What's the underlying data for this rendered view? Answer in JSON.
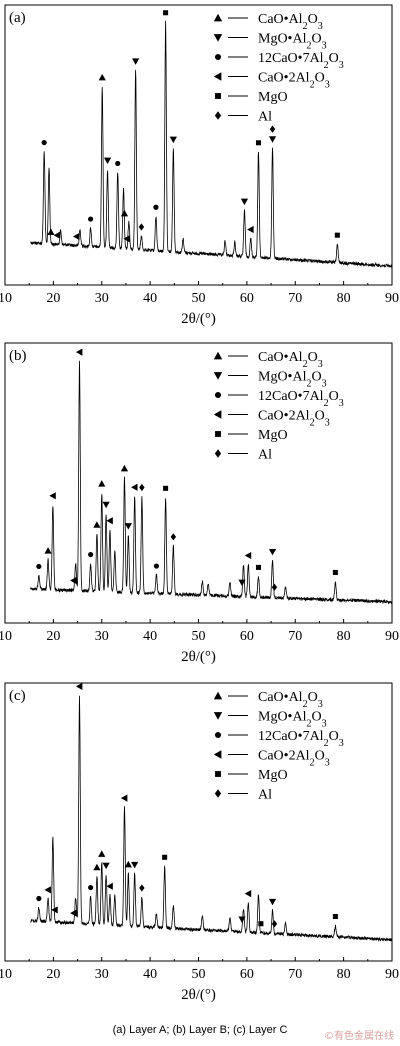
{
  "caption": "(a) Layer A; (b) Layer B; (c) Layer C",
  "watermark": "©有色金属在线",
  "legend_entries": [
    {
      "marker": "triangle-up",
      "html": "CaO•Al<tspan baseline-shift=\"sub\" font-size=\"10\">2</tspan>O<tspan baseline-shift=\"sub\" font-size=\"10\">3</tspan>"
    },
    {
      "marker": "triangle-down",
      "html": "MgO•Al<tspan baseline-shift=\"sub\" font-size=\"10\">2</tspan>O<tspan baseline-shift=\"sub\" font-size=\"10\">3</tspan>"
    },
    {
      "marker": "circle",
      "html": "12CaO•7Al<tspan baseline-shift=\"sub\" font-size=\"10\">2</tspan>O<tspan baseline-shift=\"sub\" font-size=\"10\">3</tspan>"
    },
    {
      "marker": "triangle-left",
      "html": "CaO•2Al<tspan baseline-shift=\"sub\" font-size=\"10\">2</tspan>O<tspan baseline-shift=\"sub\" font-size=\"10\">3</tspan>"
    },
    {
      "marker": "square",
      "html": "MgO"
    },
    {
      "marker": "diamond",
      "html": "Al"
    }
  ],
  "chart_data": [
    {
      "type": "line",
      "panel_label": "(a)",
      "xlabel": "2θ/(°)",
      "xlim": [
        10,
        90
      ],
      "xticks": [
        10,
        20,
        30,
        40,
        50,
        60,
        70,
        80,
        90
      ],
      "background": {
        "start": 0.14,
        "end": 0.03
      },
      "peaks": [
        {
          "x": 18.1,
          "h": 0.4
        },
        {
          "x": 19.1,
          "h": 0.33
        },
        {
          "x": 21.5,
          "h": 0.06
        },
        {
          "x": 25.5,
          "h": 0.07
        },
        {
          "x": 27.7,
          "h": 0.08
        },
        {
          "x": 30.1,
          "h": 0.7
        },
        {
          "x": 31.2,
          "h": 0.34
        },
        {
          "x": 33.3,
          "h": 0.33
        },
        {
          "x": 34.5,
          "h": 0.26
        },
        {
          "x": 35.6,
          "h": 0.12
        },
        {
          "x": 37.0,
          "h": 0.78
        },
        {
          "x": 38.2,
          "h": 0.06
        },
        {
          "x": 41.2,
          "h": 0.15
        },
        {
          "x": 43.2,
          "h": 1.0
        },
        {
          "x": 44.8,
          "h": 0.45
        },
        {
          "x": 46.8,
          "h": 0.06
        },
        {
          "x": 55.5,
          "h": 0.06
        },
        {
          "x": 57.5,
          "h": 0.06
        },
        {
          "x": 59.5,
          "h": 0.2
        },
        {
          "x": 60.8,
          "h": 0.08
        },
        {
          "x": 62.4,
          "h": 0.46
        },
        {
          "x": 65.3,
          "h": 0.48
        },
        {
          "x": 78.7,
          "h": 0.08
        }
      ],
      "markers": [
        {
          "x": 18.1,
          "type": "circle"
        },
        {
          "x": 19.5,
          "type": "triangle-up"
        },
        {
          "x": 20.8,
          "type": "triangle-left"
        },
        {
          "x": 24.8,
          "type": "triangle-left"
        },
        {
          "x": 27.7,
          "type": "circle"
        },
        {
          "x": 30.1,
          "type": "triangle-up"
        },
        {
          "x": 31.2,
          "type": "triangle-down"
        },
        {
          "x": 33.3,
          "type": "circle"
        },
        {
          "x": 34.7,
          "type": "triangle-up"
        },
        {
          "x": 35.2,
          "type": "triangle-left"
        },
        {
          "x": 37.0,
          "type": "triangle-down"
        },
        {
          "x": 38.2,
          "type": "diamond"
        },
        {
          "x": 41.2,
          "type": "circle"
        },
        {
          "x": 43.2,
          "type": "square"
        },
        {
          "x": 44.8,
          "type": "triangle-down"
        },
        {
          "x": 59.5,
          "type": "triangle-down"
        },
        {
          "x": 60.8,
          "type": "triangle-left"
        },
        {
          "x": 62.4,
          "type": "square"
        },
        {
          "x": 65.3,
          "type": "triangle-down"
        },
        {
          "x": 65.3,
          "type": "diamond"
        },
        {
          "x": 78.7,
          "type": "square"
        }
      ]
    },
    {
      "type": "line",
      "panel_label": "(b)",
      "xlabel": "2θ/(°)",
      "xlim": [
        10,
        90
      ],
      "xticks": [
        10,
        20,
        30,
        40,
        50,
        60,
        70,
        80,
        90
      ],
      "background": {
        "start": 0.1,
        "end": 0.04
      },
      "peaks": [
        {
          "x": 17.0,
          "h": 0.06
        },
        {
          "x": 18.9,
          "h": 0.13
        },
        {
          "x": 19.9,
          "h": 0.37
        },
        {
          "x": 24.6,
          "h": 0.12
        },
        {
          "x": 25.4,
          "h": 1.0
        },
        {
          "x": 27.7,
          "h": 0.12
        },
        {
          "x": 29.0,
          "h": 0.25
        },
        {
          "x": 30.0,
          "h": 0.43
        },
        {
          "x": 30.9,
          "h": 0.34
        },
        {
          "x": 31.7,
          "h": 0.27
        },
        {
          "x": 32.7,
          "h": 0.18
        },
        {
          "x": 34.7,
          "h": 0.5
        },
        {
          "x": 35.5,
          "h": 0.25
        },
        {
          "x": 36.8,
          "h": 0.42
        },
        {
          "x": 38.3,
          "h": 0.42
        },
        {
          "x": 41.3,
          "h": 0.08
        },
        {
          "x": 43.2,
          "h": 0.42
        },
        {
          "x": 44.8,
          "h": 0.21
        },
        {
          "x": 50.8,
          "h": 0.06
        },
        {
          "x": 52.0,
          "h": 0.05
        },
        {
          "x": 56.5,
          "h": 0.06
        },
        {
          "x": 59.3,
          "h": 0.14
        },
        {
          "x": 60.3,
          "h": 0.14
        },
        {
          "x": 62.4,
          "h": 0.09
        },
        {
          "x": 65.3,
          "h": 0.16
        },
        {
          "x": 68.0,
          "h": 0.05
        },
        {
          "x": 78.3,
          "h": 0.08
        }
      ],
      "markers": [
        {
          "x": 17.0,
          "type": "circle"
        },
        {
          "x": 18.9,
          "type": "triangle-up"
        },
        {
          "x": 19.9,
          "type": "triangle-left"
        },
        {
          "x": 24.2,
          "type": "triangle-left"
        },
        {
          "x": 25.4,
          "type": "triangle-left"
        },
        {
          "x": 27.7,
          "type": "circle"
        },
        {
          "x": 29.0,
          "type": "triangle-up"
        },
        {
          "x": 30.0,
          "type": "triangle-up"
        },
        {
          "x": 30.9,
          "type": "triangle-down"
        },
        {
          "x": 31.7,
          "type": "triangle-left"
        },
        {
          "x": 34.7,
          "type": "triangle-up"
        },
        {
          "x": 35.5,
          "type": "triangle-down"
        },
        {
          "x": 36.8,
          "type": "triangle-left"
        },
        {
          "x": 38.3,
          "type": "diamond"
        },
        {
          "x": 41.3,
          "type": "circle"
        },
        {
          "x": 43.2,
          "type": "square"
        },
        {
          "x": 44.8,
          "type": "diamond"
        },
        {
          "x": 59.0,
          "type": "triangle-down"
        },
        {
          "x": 60.3,
          "type": "triangle-left"
        },
        {
          "x": 62.4,
          "type": "square"
        },
        {
          "x": 65.3,
          "type": "triangle-down"
        },
        {
          "x": 65.7,
          "type": "diamond"
        },
        {
          "x": 78.3,
          "type": "square"
        }
      ]
    },
    {
      "type": "line",
      "panel_label": "(c)",
      "xlabel": "2θ/(°)",
      "xlim": [
        10,
        90
      ],
      "xticks": [
        10,
        20,
        30,
        40,
        50,
        60,
        70,
        80,
        90
      ],
      "background": {
        "start": 0.13,
        "end": 0.04
      },
      "peaks": [
        {
          "x": 13.8,
          "h": 0.05
        },
        {
          "x": 17.0,
          "h": 0.06
        },
        {
          "x": 18.9,
          "h": 0.1
        },
        {
          "x": 19.9,
          "h": 0.37
        },
        {
          "x": 24.6,
          "h": 0.11
        },
        {
          "x": 25.4,
          "h": 1.0
        },
        {
          "x": 27.7,
          "h": 0.12
        },
        {
          "x": 29.0,
          "h": 0.21
        },
        {
          "x": 30.0,
          "h": 0.27
        },
        {
          "x": 30.9,
          "h": 0.22
        },
        {
          "x": 31.7,
          "h": 0.13
        },
        {
          "x": 32.7,
          "h": 0.13
        },
        {
          "x": 34.7,
          "h": 0.52
        },
        {
          "x": 35.5,
          "h": 0.23
        },
        {
          "x": 36.8,
          "h": 0.23
        },
        {
          "x": 38.3,
          "h": 0.13
        },
        {
          "x": 41.3,
          "h": 0.06
        },
        {
          "x": 43.0,
          "h": 0.27
        },
        {
          "x": 44.8,
          "h": 0.1
        },
        {
          "x": 50.8,
          "h": 0.06
        },
        {
          "x": 56.5,
          "h": 0.06
        },
        {
          "x": 59.3,
          "h": 0.1
        },
        {
          "x": 60.3,
          "h": 0.13
        },
        {
          "x": 62.4,
          "h": 0.17
        },
        {
          "x": 65.3,
          "h": 0.1
        },
        {
          "x": 68.0,
          "h": 0.05
        },
        {
          "x": 78.3,
          "h": 0.05
        }
      ],
      "markers": [
        {
          "x": 17.0,
          "type": "circle"
        },
        {
          "x": 18.9,
          "type": "triangle-left"
        },
        {
          "x": 20.3,
          "type": "triangle-left"
        },
        {
          "x": 24.2,
          "type": "triangle-left"
        },
        {
          "x": 25.4,
          "type": "triangle-left"
        },
        {
          "x": 27.7,
          "type": "circle"
        },
        {
          "x": 29.0,
          "type": "triangle-up"
        },
        {
          "x": 30.0,
          "type": "triangle-up"
        },
        {
          "x": 30.9,
          "type": "triangle-down"
        },
        {
          "x": 31.7,
          "type": "triangle-left"
        },
        {
          "x": 34.7,
          "type": "triangle-left"
        },
        {
          "x": 35.5,
          "type": "triangle-up"
        },
        {
          "x": 36.8,
          "type": "triangle-down"
        },
        {
          "x": 38.3,
          "type": "diamond"
        },
        {
          "x": 43.0,
          "type": "square"
        },
        {
          "x": 59.0,
          "type": "triangle-down"
        },
        {
          "x": 60.3,
          "type": "triangle-left"
        },
        {
          "x": 62.9,
          "type": "square"
        },
        {
          "x": 65.3,
          "type": "triangle-down"
        },
        {
          "x": 65.7,
          "type": "diamond"
        },
        {
          "x": 78.3,
          "type": "square"
        }
      ]
    }
  ]
}
